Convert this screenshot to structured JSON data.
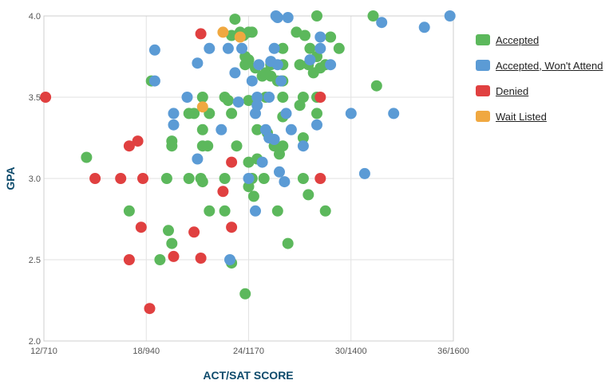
{
  "chart_data": {
    "type": "scatter",
    "xlabel": "ACT/SAT SCORE",
    "ylabel": "GPA",
    "xticks": [
      "12/710",
      "18/940",
      "24/1170",
      "30/1400",
      "36/1600"
    ],
    "yticks": [
      "2.0",
      "2.5",
      "3.0",
      "3.5",
      "4.0"
    ],
    "xlim": [
      12,
      36
    ],
    "ylim": [
      2.0,
      4.0
    ],
    "grid": true,
    "legend_position": "right",
    "series": [
      {
        "name": "Accepted",
        "color": "#5cb85c",
        "points": [
          [
            14.5,
            3.13
          ],
          [
            17,
            2.8
          ],
          [
            18.3,
            3.6
          ],
          [
            18.8,
            2.5
          ],
          [
            19.2,
            3.0
          ],
          [
            19.3,
            2.68
          ],
          [
            19.5,
            2.6
          ],
          [
            19.5,
            3.2
          ],
          [
            19.5,
            3.23
          ],
          [
            20.5,
            3.0
          ],
          [
            20.5,
            3.4
          ],
          [
            20.8,
            3.4
          ],
          [
            21.2,
            3.0
          ],
          [
            21.3,
            3.5
          ],
          [
            21.3,
            3.3
          ],
          [
            21.3,
            3.2
          ],
          [
            21.3,
            2.98
          ],
          [
            21.6,
            3.2
          ],
          [
            21.7,
            3.4
          ],
          [
            21.7,
            2.8
          ],
          [
            22.6,
            3.5
          ],
          [
            22.6,
            3.0
          ],
          [
            22.6,
            2.8
          ],
          [
            22.8,
            3.48
          ],
          [
            23.0,
            3.4
          ],
          [
            23.0,
            3.88
          ],
          [
            23.0,
            2.48
          ],
          [
            23.2,
            3.98
          ],
          [
            23.3,
            3.2
          ],
          [
            23.5,
            3.9
          ],
          [
            23.7,
            3.88
          ],
          [
            23.8,
            3.75
          ],
          [
            23.8,
            3.7
          ],
          [
            23.8,
            2.29
          ],
          [
            24.0,
            3.9
          ],
          [
            24.0,
            3.73
          ],
          [
            24.0,
            3.48
          ],
          [
            24.0,
            3.1
          ],
          [
            24.0,
            2.95
          ],
          [
            24.2,
            3.9
          ],
          [
            24.2,
            3.0
          ],
          [
            24.3,
            2.89
          ],
          [
            24.4,
            3.68
          ],
          [
            24.5,
            3.3
          ],
          [
            24.5,
            3.12
          ],
          [
            24.8,
            3.63
          ],
          [
            24.9,
            3.0
          ],
          [
            25.0,
            3.65
          ],
          [
            25.0,
            3.5
          ],
          [
            25.1,
            3.28
          ],
          [
            25.3,
            3.7
          ],
          [
            25.3,
            3.63
          ],
          [
            25.5,
            3.2
          ],
          [
            25.7,
            2.8
          ],
          [
            25.7,
            3.6
          ],
          [
            25.8,
            3.15
          ],
          [
            26.0,
            3.8
          ],
          [
            26.0,
            3.7
          ],
          [
            26.0,
            3.6
          ],
          [
            26.0,
            3.5
          ],
          [
            26.0,
            3.38
          ],
          [
            26.0,
            3.2
          ],
          [
            26.3,
            2.6
          ],
          [
            26.8,
            3.9
          ],
          [
            27.0,
            3.7
          ],
          [
            27.0,
            3.45
          ],
          [
            27.2,
            3.5
          ],
          [
            27.2,
            3.25
          ],
          [
            27.2,
            3.0
          ],
          [
            27.3,
            3.88
          ],
          [
            27.5,
            3.7
          ],
          [
            27.5,
            2.9
          ],
          [
            27.6,
            3.8
          ],
          [
            27.8,
            3.65
          ],
          [
            28.0,
            4.0
          ],
          [
            28.0,
            3.75
          ],
          [
            28.0,
            3.5
          ],
          [
            28.0,
            3.4
          ],
          [
            28.2,
            3.68
          ],
          [
            28.5,
            3.7
          ],
          [
            28.5,
            2.8
          ],
          [
            28.8,
            3.87
          ],
          [
            29.3,
            3.8
          ],
          [
            31.3,
            4.0
          ],
          [
            31.5,
            3.57
          ]
        ]
      },
      {
        "name": "Accepted, Won't Attend",
        "color": "#5b9bd5",
        "points": [
          [
            18.5,
            3.79
          ],
          [
            18.5,
            3.6
          ],
          [
            19.6,
            3.4
          ],
          [
            19.6,
            3.33
          ],
          [
            20.4,
            3.5
          ],
          [
            21.0,
            3.12
          ],
          [
            21.0,
            3.71
          ],
          [
            21.7,
            3.8
          ],
          [
            22.4,
            3.3
          ],
          [
            22.8,
            3.8
          ],
          [
            22.9,
            2.5
          ],
          [
            23.2,
            3.65
          ],
          [
            23.4,
            3.47
          ],
          [
            23.6,
            3.8
          ],
          [
            24.0,
            3.0
          ],
          [
            24.2,
            3.6
          ],
          [
            24.4,
            3.4
          ],
          [
            24.4,
            2.8
          ],
          [
            24.5,
            3.5
          ],
          [
            24.5,
            3.45
          ],
          [
            24.6,
            3.7
          ],
          [
            24.8,
            3.1
          ],
          [
            25.0,
            3.3
          ],
          [
            25.2,
            3.5
          ],
          [
            25.2,
            3.25
          ],
          [
            25.3,
            3.72
          ],
          [
            25.5,
            3.8
          ],
          [
            25.5,
            3.24
          ],
          [
            25.6,
            4.0
          ],
          [
            25.7,
            3.99
          ],
          [
            25.7,
            3.7
          ],
          [
            25.8,
            3.04
          ],
          [
            25.9,
            3.6
          ],
          [
            26.1,
            2.98
          ],
          [
            26.2,
            3.4
          ],
          [
            26.3,
            3.99
          ],
          [
            26.5,
            3.3
          ],
          [
            27.2,
            3.2
          ],
          [
            27.6,
            3.73
          ],
          [
            28.0,
            3.33
          ],
          [
            28.2,
            3.87
          ],
          [
            28.2,
            3.8
          ],
          [
            28.8,
            3.7
          ],
          [
            30.0,
            3.4
          ],
          [
            30.8,
            3.03
          ],
          [
            31.8,
            3.96
          ],
          [
            32.5,
            3.4
          ],
          [
            34.3,
            3.93
          ],
          [
            35.8,
            4.0
          ]
        ]
      },
      {
        "name": "Denied",
        "color": "#e04040",
        "points": [
          [
            12.1,
            3.5
          ],
          [
            15.0,
            3.0
          ],
          [
            16.5,
            3.0
          ],
          [
            17.0,
            3.2
          ],
          [
            17.0,
            2.5
          ],
          [
            17.5,
            3.23
          ],
          [
            17.7,
            2.7
          ],
          [
            17.8,
            3.0
          ],
          [
            18.2,
            2.2
          ],
          [
            19.6,
            2.52
          ],
          [
            20.8,
            2.67
          ],
          [
            21.2,
            3.89
          ],
          [
            21.2,
            2.51
          ],
          [
            22.5,
            2.92
          ],
          [
            23.0,
            3.1
          ],
          [
            23.0,
            2.7
          ],
          [
            28.2,
            3.5
          ],
          [
            28.2,
            3.0
          ]
        ]
      },
      {
        "name": "Wait Listed",
        "color": "#f0a840",
        "points": [
          [
            21.3,
            3.44
          ],
          [
            22.5,
            3.9
          ],
          [
            23.5,
            3.87
          ]
        ]
      }
    ]
  }
}
